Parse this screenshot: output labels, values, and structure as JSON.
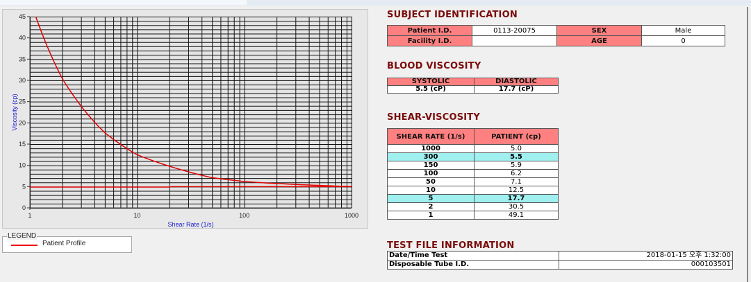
{
  "chart_data": {
    "type": "line",
    "xlabel": "Shear Rate (1/s)",
    "ylabel": "Viscosity (cp)",
    "xscale": "log",
    "xlim": [
      1,
      1000
    ],
    "ylim": [
      0,
      45
    ],
    "xticks": [
      "1",
      "10",
      "100",
      "1000"
    ],
    "yticks": [
      "0",
      "5",
      "10",
      "15",
      "20",
      "25",
      "30",
      "35",
      "40",
      "45"
    ],
    "grid": true,
    "series": [
      {
        "name": "Patient Profile",
        "color": "#e00000",
        "x": [
          1,
          2,
          5,
          10,
          50,
          100,
          150,
          300,
          1000
        ],
        "y": [
          49.1,
          30.5,
          17.7,
          12.5,
          7.1,
          6.2,
          5.9,
          5.5,
          5.0
        ]
      },
      {
        "color": "#e00000",
        "x": [
          1,
          20,
          21,
          1000
        ],
        "y": [
          4.9,
          4.9,
          5.0,
          5.0
        ]
      }
    ],
    "legend": {
      "title": "LEGEND",
      "placement": "bottom-left",
      "entries": [
        "Patient Profile"
      ]
    }
  },
  "subject": {
    "title": "SUBJECT IDENTIFICATION",
    "patient_id_label": "Patient I.D.",
    "patient_id": "0113-20075",
    "sex_label": "SEX",
    "sex": "Male",
    "facility_label": "Facility I.D.",
    "facility": "",
    "age_label": "AGE",
    "age": "0"
  },
  "blood": {
    "title": "BLOOD VISCOSITY",
    "systolic_label": "SYSTOLIC",
    "diastolic_label": "DIASTOLIC",
    "systolic": "5.5 (cP)",
    "diastolic": "17.7 (cP)"
  },
  "shear": {
    "title": "SHEAR-VISCOSITY",
    "headers": [
      "SHEAR RATE (1/s)",
      "PATIENT (cp)"
    ],
    "rows": [
      {
        "rate": "1000",
        "val": "5.0",
        "hl": false
      },
      {
        "rate": "300",
        "val": "5.5",
        "hl": true
      },
      {
        "rate": "150",
        "val": "5.9",
        "hl": false
      },
      {
        "rate": "100",
        "val": "6.2",
        "hl": false
      },
      {
        "rate": "50",
        "val": "7.1",
        "hl": false
      },
      {
        "rate": "10",
        "val": "12.5",
        "hl": false
      },
      {
        "rate": "5",
        "val": "17.7",
        "hl": true
      },
      {
        "rate": "2",
        "val": "30.5",
        "hl": false
      },
      {
        "rate": "1",
        "val": "49.1",
        "hl": false
      }
    ],
    "highlight_color": "#a0f0f0"
  },
  "testfile": {
    "title": "TEST FILE INFORMATION",
    "date_label": "Date/Time Test",
    "date": "2018-01-15  오후 1:32:00",
    "tube_label": "Disposable Tube I.D.",
    "tube": "000103501"
  }
}
